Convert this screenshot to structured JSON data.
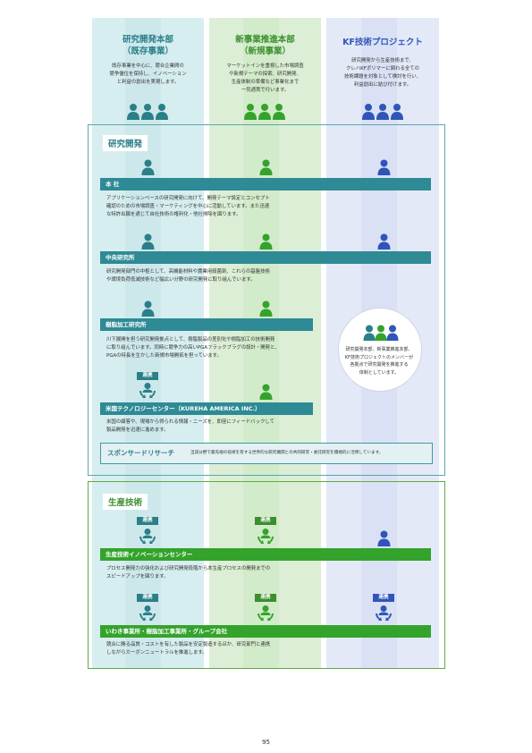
{
  "columns": [
    {
      "title": "研究開発本部",
      "subtitle": "（既存事業）",
      "color": "#2a7f89",
      "desc": [
        "既存事業を中心に、競合企業間の",
        "競争優位を保持し、イノベーション",
        "と利益の創出を実現します。"
      ]
    },
    {
      "title": "新事業推進本部",
      "subtitle": "（新規事業）",
      "color": "#3a8f2e",
      "desc": [
        "マーケットインを重視した市場調査",
        "や新規テーマの探索、研究開発、",
        "生産体制の準備など事業化まで",
        "一気通貫で行います。"
      ]
    },
    {
      "title": "KF技術プロジェクト",
      "subtitle": "",
      "color": "#2f55b8",
      "desc": [
        "研究開発から生産技術まで、",
        "クレハKFポリマーに関わる全ての",
        "技術課題を対象として検討を行い、",
        "利益創出に結び付けます。"
      ]
    }
  ],
  "colors": {
    "teal": "#2a7f89",
    "green": "#3a8f2e",
    "blue": "#2f55b8",
    "bar_teal": "#2e8a95",
    "bar_green": "#34a32c"
  },
  "rd": {
    "label": "研究開発",
    "sections": [
      {
        "title": "本 社",
        "desc": [
          "アプリケーションベースの研究開発に向けて、開発テーマ設定とコンセプト",
          "確認のための市場調査・マーケティングを中心に活動しています。また迅速",
          "な特許出願を通じて自社技術の権利化・他社排除を図ります。"
        ]
      },
      {
        "title": "中央研究所",
        "desc": [
          "研究開発部門の中枢として、高機能材料や農業用殺菌剤、これらの基盤技術",
          "や環境負荷低減技術など幅広い分野の研究開発に取り組んでいます。"
        ]
      },
      {
        "title": "樹脂加工研究所",
        "desc": [
          "川下展開を担う研究開発拠点として、樹脂製品の差別化や樹脂加工の技術開発",
          "に取り組んでいます。同時に競争力の高いPGAフラックプラグの設計・開発と、",
          "PGAの特長を生かした新規市場開拓を担っています。"
        ]
      },
      {
        "title": "米国テクノロジーセンター（KUREHA AMERICA INC.）",
        "desc": [
          "米国の顧客や、現場から得られる情報・ニーズを、即座にフィードバックして",
          "製品開発を迅速に進めます。"
        ]
      }
    ],
    "renkei": "連携",
    "circle_text": [
      "研究開発本部、新事業推進本部、",
      "KF技術プロジェクトのメンバーが",
      "各拠点で研究開発を推進する",
      "体制としています。"
    ],
    "sponsor": {
      "title": "スポンサードリサーチ",
      "desc": "当該分野で最先端の技術を有する世界的な研究機関との共同研究・委託研究を積極的に活用しています。"
    }
  },
  "prod": {
    "label": "生産技術",
    "sections": [
      {
        "title": "生産技術イノベーションセンター",
        "desc": [
          "プロセス開発力の強化および研究開発段階から本生産プロセスの開発までの",
          "スピードアップを図ります。"
        ]
      },
      {
        "title": "いわき事業所・樹脂加工事業所・グループ会社",
        "desc": [
          "競合に勝る品質・コストを有した製品を安定製造するほか、研究部門と連携",
          "しながらカーボンニュートラルを推進します。"
        ]
      }
    ],
    "renkei": "連携"
  },
  "page_number": "95"
}
